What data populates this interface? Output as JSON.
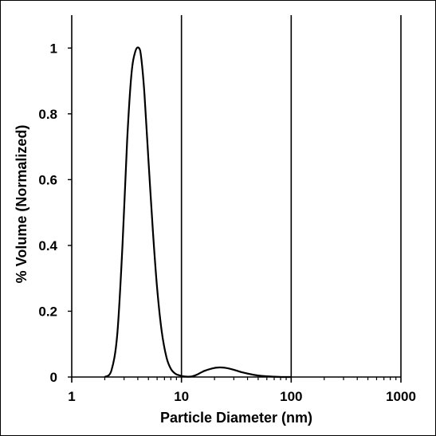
{
  "chart_data": {
    "type": "line",
    "title": "",
    "xlabel": "Particle Diameter (nm)",
    "ylabel": "% Volume (Normalized)",
    "x_scale": "log",
    "xlim": [
      1,
      1000
    ],
    "ylim": [
      0,
      1.1
    ],
    "x_ticks": [
      "1",
      "10",
      "100",
      "1000"
    ],
    "y_ticks": [
      "0",
      "0.2",
      "0.4",
      "0.6",
      "0.8",
      "1"
    ],
    "grid": {
      "x_major": true,
      "y_major": false
    },
    "legend": "none",
    "series": [
      {
        "color": "#000000",
        "x": [
          2.0,
          2.3,
          2.6,
          2.9,
          3.2,
          3.5,
          3.8,
          4.1,
          4.3,
          4.6,
          5.0,
          5.5,
          6.0,
          6.6,
          7.3,
          8.0,
          8.8,
          9.6,
          10.5,
          11.5,
          12.5,
          14.0,
          16.0,
          19.0,
          22.0,
          25.0,
          30.0,
          36.0,
          45.0,
          55.0,
          70.0,
          85.0,
          100.0
        ],
        "y": [
          0.0,
          0.02,
          0.13,
          0.4,
          0.72,
          0.92,
          0.99,
          1.0,
          0.97,
          0.86,
          0.66,
          0.44,
          0.27,
          0.14,
          0.06,
          0.025,
          0.01,
          0.005,
          0.002,
          0.001,
          0.002,
          0.008,
          0.018,
          0.026,
          0.029,
          0.028,
          0.022,
          0.014,
          0.007,
          0.003,
          0.001,
          0.0,
          0.0
        ]
      }
    ]
  }
}
